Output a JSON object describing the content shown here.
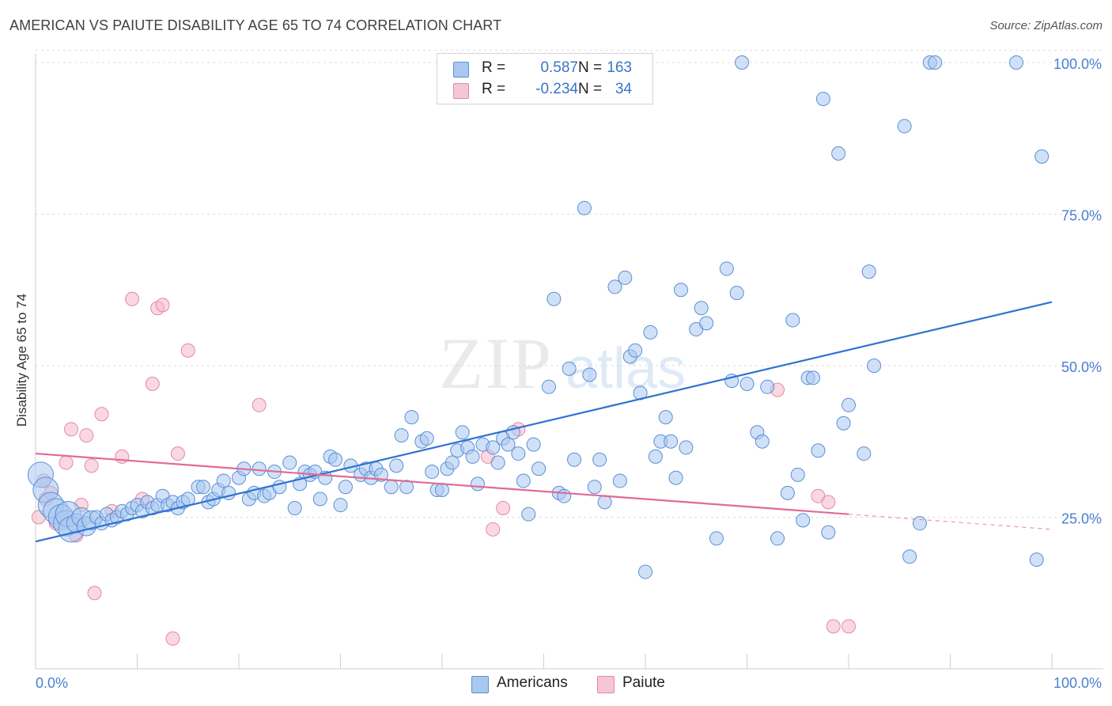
{
  "title": "AMERICAN VS PAIUTE DISABILITY AGE 65 TO 74 CORRELATION CHART",
  "source": "Source: ZipAtlas.com",
  "watermark": {
    "zip": "ZIP",
    "atlas": "atlas"
  },
  "colors": {
    "americans_fill": "#a9c8f0",
    "americans_stroke": "#5b8fd6",
    "americans_line": "#2f72d0",
    "paiute_fill": "#f5b8cb",
    "paiute_stroke": "#e588a6",
    "paiute_line": "#e06b95",
    "tick_text": "#4a7fd0"
  },
  "stats": {
    "americans": {
      "r_label": "R =",
      "r_value": "0.587",
      "n_label": "N =",
      "n_value": "163"
    },
    "paiute": {
      "r_label": "R =",
      "r_value": "-0.234",
      "n_label": "N =",
      "n_value": "34"
    }
  },
  "legend": {
    "americans": "Americans",
    "paiute": "Paiute"
  },
  "chart_data": {
    "type": "scatter",
    "title": "AMERICAN VS PAIUTE DISABILITY AGE 65 TO 74 CORRELATION CHART",
    "xlabel": "",
    "ylabel": "Disability Age 65 to 74",
    "xlim": [
      0,
      100
    ],
    "ylim": [
      0,
      102
    ],
    "x_tick_labels": [
      "0.0%",
      "100.0%"
    ],
    "y_ticks": [
      25,
      50,
      75,
      100
    ],
    "y_tick_labels": [
      "25.0%",
      "50.0%",
      "75.0%",
      "100.0%"
    ],
    "grid": "horizontal dashed",
    "legend_position": "bottom-center",
    "series": [
      {
        "name": "Americans",
        "trend": {
          "x": [
            0,
            100
          ],
          "y": [
            21.0,
            60.5
          ]
        },
        "points": [
          [
            0.5,
            32
          ],
          [
            1,
            29.5
          ],
          [
            1.5,
            27
          ],
          [
            2,
            26
          ],
          [
            2.5,
            25
          ],
          [
            3,
            24
          ],
          [
            3.2,
            25.5
          ],
          [
            3.5,
            23
          ],
          [
            4,
            24
          ],
          [
            4.5,
            25
          ],
          [
            5,
            23.5
          ],
          [
            5.5,
            24.5
          ],
          [
            6,
            25
          ],
          [
            6.5,
            24
          ],
          [
            7,
            25.5
          ],
          [
            7.5,
            24.5
          ],
          [
            8,
            25
          ],
          [
            8.5,
            26
          ],
          [
            9,
            25.5
          ],
          [
            9.5,
            26.5
          ],
          [
            10,
            27
          ],
          [
            10.5,
            26
          ],
          [
            11,
            27.5
          ],
          [
            11.5,
            26.5
          ],
          [
            12,
            27
          ],
          [
            12.5,
            28.5
          ],
          [
            13,
            27
          ],
          [
            13.5,
            27.5
          ],
          [
            14,
            26.5
          ],
          [
            14.5,
            27.5
          ],
          [
            15,
            28
          ],
          [
            16,
            30
          ],
          [
            16.5,
            30
          ],
          [
            17,
            27.5
          ],
          [
            17.5,
            28
          ],
          [
            18,
            29.5
          ],
          [
            18.5,
            31
          ],
          [
            19,
            29
          ],
          [
            20,
            31.5
          ],
          [
            20.5,
            33
          ],
          [
            21,
            28
          ],
          [
            21.5,
            29
          ],
          [
            22,
            33
          ],
          [
            22.5,
            28.5
          ],
          [
            23,
            29
          ],
          [
            23.5,
            32.5
          ],
          [
            24,
            30
          ],
          [
            25,
            34
          ],
          [
            25.5,
            26.5
          ],
          [
            26,
            30.5
          ],
          [
            26.5,
            32.5
          ],
          [
            27,
            32
          ],
          [
            27.5,
            32.5
          ],
          [
            28,
            28
          ],
          [
            28.5,
            31.5
          ],
          [
            29,
            35
          ],
          [
            29.5,
            34.5
          ],
          [
            30,
            27
          ],
          [
            30.5,
            30
          ],
          [
            31,
            33.5
          ],
          [
            32,
            32
          ],
          [
            32.5,
            33
          ],
          [
            33,
            31.5
          ],
          [
            33.5,
            33
          ],
          [
            34,
            32
          ],
          [
            35,
            30
          ],
          [
            35.5,
            33.5
          ],
          [
            36,
            38.5
          ],
          [
            36.5,
            30
          ],
          [
            37,
            41.5
          ],
          [
            38,
            37.5
          ],
          [
            38.5,
            38
          ],
          [
            39,
            32.5
          ],
          [
            39.5,
            29.5
          ],
          [
            40,
            29.5
          ],
          [
            40.5,
            33
          ],
          [
            41,
            34
          ],
          [
            41.5,
            36
          ],
          [
            42,
            39
          ],
          [
            42.5,
            36.5
          ],
          [
            43,
            35
          ],
          [
            43.5,
            30.5
          ],
          [
            44,
            37
          ],
          [
            45,
            36.5
          ],
          [
            45.5,
            34
          ],
          [
            46,
            38
          ],
          [
            46.5,
            37
          ],
          [
            47,
            39
          ],
          [
            47.5,
            35.5
          ],
          [
            48,
            31
          ],
          [
            48.5,
            25.5
          ],
          [
            49,
            37
          ],
          [
            49.5,
            33
          ],
          [
            50.5,
            46.5
          ],
          [
            51,
            61
          ],
          [
            51.5,
            29
          ],
          [
            52,
            28.5
          ],
          [
            52.5,
            49.5
          ],
          [
            53,
            34.5
          ],
          [
            54,
            76
          ],
          [
            54.5,
            48.5
          ],
          [
            55,
            30
          ],
          [
            55.5,
            34.5
          ],
          [
            56,
            27.5
          ],
          [
            57,
            63
          ],
          [
            57.5,
            31
          ],
          [
            58,
            64.5
          ],
          [
            58.5,
            51.5
          ],
          [
            59,
            52.5
          ],
          [
            59.5,
            45.5
          ],
          [
            60,
            16
          ],
          [
            60.5,
            55.5
          ],
          [
            61,
            35
          ],
          [
            61.5,
            37.5
          ],
          [
            62,
            41.5
          ],
          [
            62.5,
            37.5
          ],
          [
            63,
            31.5
          ],
          [
            63.5,
            62.5
          ],
          [
            64,
            36.5
          ],
          [
            65,
            56
          ],
          [
            65.5,
            59.5
          ],
          [
            66,
            57
          ],
          [
            67,
            21.5
          ],
          [
            68,
            66
          ],
          [
            68.5,
            47.5
          ],
          [
            69,
            62
          ],
          [
            69.5,
            100
          ],
          [
            70,
            47
          ],
          [
            71,
            39
          ],
          [
            71.5,
            37.5
          ],
          [
            72,
            46.5
          ],
          [
            73,
            21.5
          ],
          [
            74,
            29
          ],
          [
            74.5,
            57.5
          ],
          [
            75,
            32
          ],
          [
            75.5,
            24.5
          ],
          [
            76,
            48
          ],
          [
            76.5,
            48
          ],
          [
            77,
            36
          ],
          [
            77.5,
            94
          ],
          [
            78,
            22.5
          ],
          [
            79,
            85
          ],
          [
            79.5,
            40.5
          ],
          [
            80,
            43.5
          ],
          [
            81.5,
            35.5
          ],
          [
            82,
            65.5
          ],
          [
            82.5,
            50
          ],
          [
            85.5,
            89.5
          ],
          [
            86,
            18.5
          ],
          [
            87,
            24
          ],
          [
            88,
            100
          ],
          [
            88.5,
            100
          ],
          [
            98.5,
            18
          ],
          [
            99,
            84.5
          ],
          [
            96.5,
            100
          ]
        ]
      },
      {
        "name": "Paiute",
        "trend": {
          "x": [
            0,
            80
          ],
          "y": [
            35.5,
            25.5
          ]
        },
        "trend_dashed": {
          "x": [
            80,
            100
          ],
          "y": [
            25.5,
            23.0
          ]
        },
        "points": [
          [
            0.3,
            25
          ],
          [
            0.8,
            31
          ],
          [
            1,
            28
          ],
          [
            1.5,
            29
          ],
          [
            2,
            24
          ],
          [
            3,
            34
          ],
          [
            3.5,
            39.5
          ],
          [
            4,
            22
          ],
          [
            4.5,
            27
          ],
          [
            5,
            38.5
          ],
          [
            5.5,
            33.5
          ],
          [
            5.8,
            12.5
          ],
          [
            6.5,
            42
          ],
          [
            7.5,
            26
          ],
          [
            8.5,
            35
          ],
          [
            9.5,
            61
          ],
          [
            10.5,
            28
          ],
          [
            11.5,
            47
          ],
          [
            12,
            59.5
          ],
          [
            12.5,
            60
          ],
          [
            13.5,
            5
          ],
          [
            14,
            35.5
          ],
          [
            15,
            52.5
          ],
          [
            22,
            43.5
          ],
          [
            44.5,
            35
          ],
          [
            45,
            23
          ],
          [
            46,
            26.5
          ],
          [
            47.5,
            39.5
          ],
          [
            73,
            46
          ],
          [
            77,
            28.5
          ],
          [
            78,
            27.5
          ],
          [
            78.5,
            7
          ],
          [
            80,
            7
          ],
          [
            2.5,
            25
          ]
        ]
      }
    ]
  }
}
